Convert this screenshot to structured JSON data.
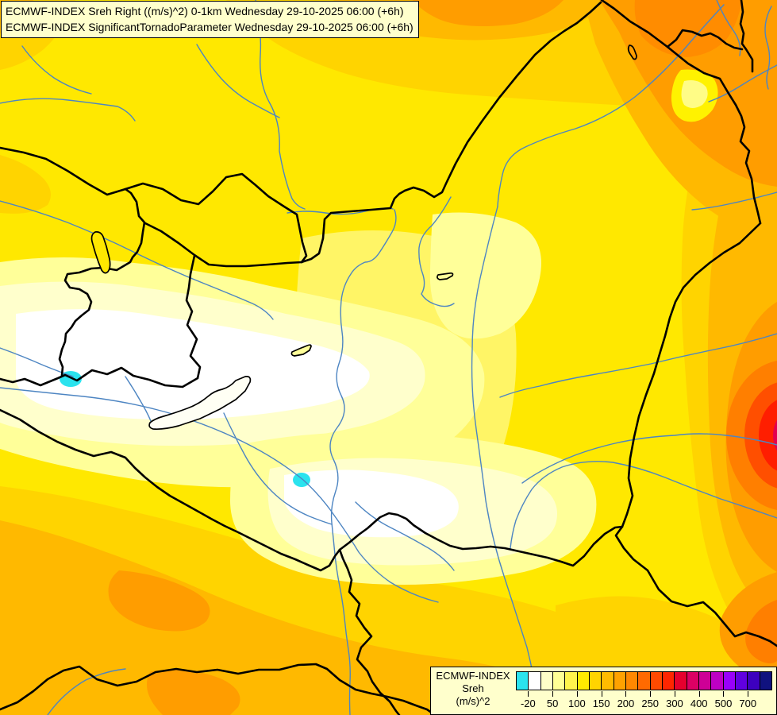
{
  "header": {
    "line1": "ECMWF-INDEX Sreh Right ((m/s)^2) 0-1km Wednesday 29-10-2025 06:00 (+6h)",
    "line2": "ECMWF-INDEX SignificantTornadoParameter Wednesday 29-10-2025 06:00 (+6h)"
  },
  "legend": {
    "title": "ECMWF-INDEX",
    "subtitle": "Sreh",
    "units": "(m/s)^2",
    "swatches": [
      "#2BE3EE",
      "#FFFFFF",
      "#FFFFC8",
      "#FFFF96",
      "#FFF44D",
      "#FFEB00",
      "#FFD400",
      "#FFBB00",
      "#FFA200",
      "#FF8800",
      "#FF6A00",
      "#FF4A00",
      "#FF2600",
      "#E6002E",
      "#DC0064",
      "#CE0096",
      "#BE00C3",
      "#9900FA",
      "#6000E0",
      "#3D00BE",
      "#10127F"
    ],
    "ticks": [
      {
        "label": "-20",
        "boundary": 1
      },
      {
        "label": "50",
        "boundary": 3
      },
      {
        "label": "100",
        "boundary": 5
      },
      {
        "label": "150",
        "boundary": 7
      },
      {
        "label": "200",
        "boundary": 9
      },
      {
        "label": "250",
        "boundary": 11
      },
      {
        "label": "300",
        "boundary": 13
      },
      {
        "label": "400",
        "boundary": 15
      },
      {
        "label": "500",
        "boundary": 17
      },
      {
        "label": "700",
        "boundary": 19
      }
    ]
  },
  "chart_data": {
    "type": "heatmap",
    "title": "ECMWF-INDEX Sreh Right ((m/s)^2) 0-1km",
    "valid_time": "Wednesday 29-10-2025 06:00 (+6h)",
    "parameter2": "ECMWF-INDEX SignificantTornadoParameter",
    "units": "(m/s)^2",
    "colorbar_values": [
      -20,
      50,
      100,
      150,
      200,
      250,
      300,
      400,
      500,
      700
    ],
    "legend_position": "bottom-right",
    "region": "Hungary / Carpathian Basin",
    "field_summary": "Storm-relative helicity 0-1km: pale/white minimum (<50) over west-central Hungary around Lake Balaton with two cyan spots (<-20); yellow 50-100 over most of the basin; gold-orange 100-250 along top, bottom-left and right edges; red-crimson maximum 300-500 at the middle-right map edge"
  },
  "palette": {
    "base_yellow": "#FFE800",
    "light_yellow": "#FFF566",
    "pale_yellow": "#FFFF99",
    "cream": "#FFFFCC",
    "white": "#FFFFFF",
    "gold": "#FFD400",
    "amber": "#FFB900",
    "orange": "#FF9D00",
    "deep_orange": "#FF7F00",
    "red_orange": "#FF4F00",
    "red": "#FF1E00",
    "crimson": "#E3004D",
    "cyan": "#2BE3EE",
    "border_black": "#000000",
    "river_blue": "#4D85C2",
    "box_background": "#FFFFCC"
  }
}
